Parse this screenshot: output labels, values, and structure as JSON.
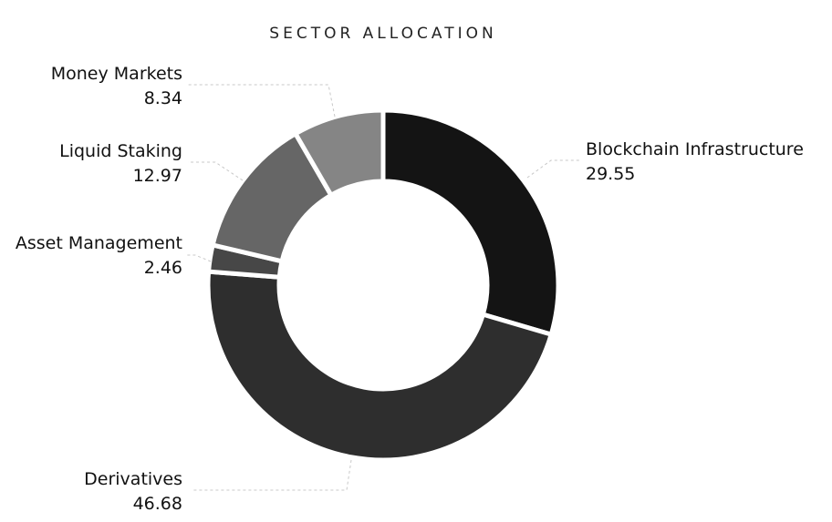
{
  "chart_data": {
    "type": "pie",
    "variant": "donut",
    "title": "SECTOR ALLOCATION",
    "legend": "none",
    "slices": [
      {
        "label": "Blockchain Infrastructure",
        "value": 29.55,
        "value_label": "29.55",
        "color": "#141414"
      },
      {
        "label": "Derivatives",
        "value": 46.68,
        "value_label": "46.68",
        "color": "#2e2e2e"
      },
      {
        "label": "Asset Management",
        "value": 2.46,
        "value_label": "2.46",
        "color": "#474747"
      },
      {
        "label": "Liquid Staking",
        "value": 12.97,
        "value_label": "12.97",
        "color": "#666666"
      },
      {
        "label": "Money Markets",
        "value": 8.34,
        "value_label": "8.34",
        "color": "#858585"
      }
    ]
  }
}
